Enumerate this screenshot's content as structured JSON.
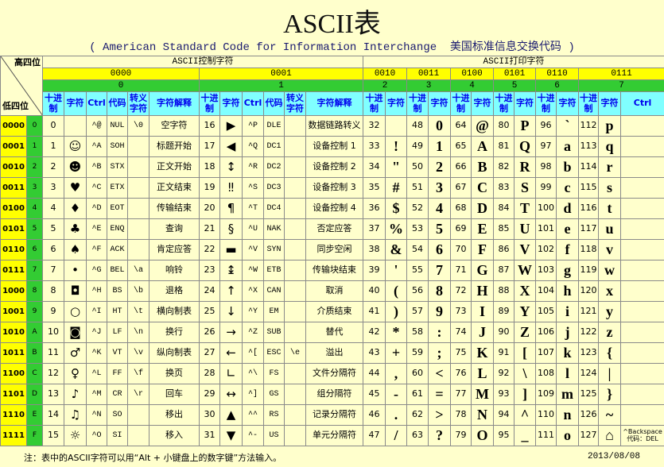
{
  "title": "ASCII表",
  "subtitle": "( American Standard Code for Information Interchange  美国标准信息交换代码 )",
  "table": {
    "corner": {
      "high": "高四位",
      "low": "低四位"
    },
    "sections": [
      "ASCII控制字符",
      "ASCII打印字符"
    ],
    "groups": [
      {
        "bin": "0000",
        "hex": "0"
      },
      {
        "bin": "0001",
        "hex": "1"
      },
      {
        "bin": "0010",
        "hex": "2"
      },
      {
        "bin": "0011",
        "hex": "3"
      },
      {
        "bin": "0100",
        "hex": "4"
      },
      {
        "bin": "0101",
        "hex": "5"
      },
      {
        "bin": "0110",
        "hex": "6"
      },
      {
        "bin": "0111",
        "hex": "7"
      }
    ],
    "control_columns": [
      "十进制",
      "字符",
      "Ctrl",
      "代码",
      "转义字符",
      "字符解释"
    ],
    "print_columns": [
      "十进制",
      "字符"
    ],
    "last_extra_column": "Ctrl",
    "rows": [
      [
        "0000",
        "0",
        "0",
        null,
        "^@",
        "NUL",
        "\\0",
        "空字符",
        "16",
        "▶",
        "^P",
        "DLE",
        null,
        "数据链路转义",
        "32",
        null,
        "48",
        "0",
        "64",
        "@",
        "80",
        "P",
        "96",
        "`",
        "112",
        "p",
        null
      ],
      [
        "0001",
        "1",
        "1",
        "☺",
        "^A",
        "SOH",
        null,
        "标题开始",
        "17",
        "◀",
        "^Q",
        "DC1",
        null,
        "设备控制 1",
        "33",
        "!",
        "49",
        "1",
        "65",
        "A",
        "81",
        "Q",
        "97",
        "a",
        "113",
        "q",
        null
      ],
      [
        "0010",
        "2",
        "2",
        "☻",
        "^B",
        "STX",
        null,
        "正文开始",
        "18",
        "↕",
        "^R",
        "DC2",
        null,
        "设备控制 2",
        "34",
        "\"",
        "50",
        "2",
        "66",
        "B",
        "82",
        "R",
        "98",
        "b",
        "114",
        "r",
        null
      ],
      [
        "0011",
        "3",
        "3",
        "♥",
        "^C",
        "ETX",
        null,
        "正文结束",
        "19",
        "‼",
        "^S",
        "DC3",
        null,
        "设备控制 3",
        "35",
        "#",
        "51",
        "3",
        "67",
        "C",
        "83",
        "S",
        "99",
        "c",
        "115",
        "s",
        null
      ],
      [
        "0100",
        "4",
        "4",
        "♦",
        "^D",
        "EOT",
        null,
        "传输结束",
        "20",
        "¶",
        "^T",
        "DC4",
        null,
        "设备控制 4",
        "36",
        "$",
        "52",
        "4",
        "68",
        "D",
        "84",
        "T",
        "100",
        "d",
        "116",
        "t",
        null
      ],
      [
        "0101",
        "5",
        "5",
        "♣",
        "^E",
        "ENQ",
        null,
        "查询",
        "21",
        "§",
        "^U",
        "NAK",
        null,
        "否定应答",
        "37",
        "%",
        "53",
        "5",
        "69",
        "E",
        "85",
        "U",
        "101",
        "e",
        "117",
        "u",
        null
      ],
      [
        "0110",
        "6",
        "6",
        "♠",
        "^F",
        "ACK",
        null,
        "肯定应答",
        "22",
        "▬",
        "^V",
        "SYN",
        null,
        "同步空闲",
        "38",
        "&",
        "54",
        "6",
        "70",
        "F",
        "86",
        "V",
        "102",
        "f",
        "118",
        "v",
        null
      ],
      [
        "0111",
        "7",
        "7",
        "•",
        "^G",
        "BEL",
        "\\a",
        "响铃",
        "23",
        "↨",
        "^W",
        "ETB",
        null,
        "传输块结束",
        "39",
        "'",
        "55",
        "7",
        "71",
        "G",
        "87",
        "W",
        "103",
        "g",
        "119",
        "w",
        null
      ],
      [
        "1000",
        "8",
        "8",
        "◘",
        "^H",
        "BS",
        "\\b",
        "退格",
        "24",
        "↑",
        "^X",
        "CAN",
        null,
        "取消",
        "40",
        "(",
        "56",
        "8",
        "72",
        "H",
        "88",
        "X",
        "104",
        "h",
        "120",
        "x",
        null
      ],
      [
        "1001",
        "9",
        "9",
        "○",
        "^I",
        "HT",
        "\\t",
        "横向制表",
        "25",
        "↓",
        "^Y",
        "EM",
        null,
        "介质结束",
        "41",
        ")",
        "57",
        "9",
        "73",
        "I",
        "89",
        "Y",
        "105",
        "i",
        "121",
        "y",
        null
      ],
      [
        "1010",
        "A",
        "10",
        "◙",
        "^J",
        "LF",
        "\\n",
        "换行",
        "26",
        "→",
        "^Z",
        "SUB",
        null,
        "替代",
        "42",
        "*",
        "58",
        ":",
        "74",
        "J",
        "90",
        "Z",
        "106",
        "j",
        "122",
        "z",
        null
      ],
      [
        "1011",
        "B",
        "11",
        "♂",
        "^K",
        "VT",
        "\\v",
        "纵向制表",
        "27",
        "←",
        "^[",
        "ESC",
        "\\e",
        "溢出",
        "43",
        "+",
        "59",
        ";",
        "75",
        "K",
        "91",
        "[",
        "107",
        "k",
        "123",
        "{",
        null
      ],
      [
        "1100",
        "C",
        "12",
        "♀",
        "^L",
        "FF",
        "\\f",
        "换页",
        "28",
        "∟",
        "^\\",
        "FS",
        null,
        "文件分隔符",
        "44",
        ",",
        "60",
        "<",
        "76",
        "L",
        "92",
        "\\",
        "108",
        "l",
        "124",
        "|",
        null
      ],
      [
        "1101",
        "D",
        "13",
        "♪",
        "^M",
        "CR",
        "\\r",
        "回车",
        "29",
        "↔",
        "^]",
        "GS",
        null,
        "组分隔符",
        "45",
        "-",
        "61",
        "=",
        "77",
        "M",
        "93",
        "]",
        "109",
        "m",
        "125",
        "}",
        null
      ],
      [
        "1110",
        "E",
        "14",
        "♫",
        "^N",
        "SO",
        null,
        "移出",
        "30",
        "▲",
        "^^",
        "RS",
        null,
        "记录分隔符",
        "46",
        ".",
        "62",
        ">",
        "78",
        "N",
        "94",
        "^",
        "110",
        "n",
        "126",
        "~",
        null
      ],
      [
        "1111",
        "F",
        "15",
        "☼",
        "^O",
        "SI",
        null,
        "移入",
        "31",
        "▼",
        "^-",
        "US",
        null,
        "单元分隔符",
        "47",
        "/",
        "63",
        "?",
        "79",
        "O",
        "95",
        "_",
        "111",
        "o",
        "127",
        "⌂",
        "^Backspace\n代码：DEL"
      ]
    ]
  },
  "footer": {
    "note": "注：表中的ASCII字符可以用“Alt + 小键盘上的数字键”方法输入。",
    "date": "2013/08/08"
  }
}
